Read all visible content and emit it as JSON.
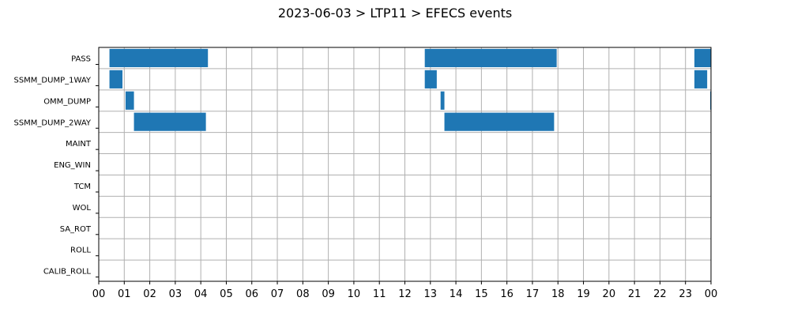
{
  "chart_data": {
    "type": "timeline",
    "title": "2023-06-03 > LTP11 > EFECS events",
    "xlabel": "",
    "ylabel": "",
    "x_unit": "hour",
    "xlim": [
      0,
      24
    ],
    "grid": true,
    "colors": {
      "bar": "#1f77b4",
      "grid": "#b0b0b0",
      "axis": "#000000"
    },
    "x_ticks": [
      "00",
      "01",
      "02",
      "03",
      "04",
      "05",
      "06",
      "07",
      "08",
      "09",
      "10",
      "11",
      "12",
      "13",
      "14",
      "15",
      "16",
      "17",
      "18",
      "19",
      "20",
      "21",
      "22",
      "23",
      "00"
    ],
    "categories": [
      "PASS",
      "SSMM_DUMP_1WAY",
      "OMM_DUMP",
      "SSMM_DUMP_2WAY",
      "MAINT",
      "ENG_WIN",
      "TCM",
      "WOL",
      "SA_ROT",
      "ROLL",
      "CALIB_ROLL"
    ],
    "events": [
      {
        "category": "PASS",
        "start": 0.42,
        "end": 4.28
      },
      {
        "category": "PASS",
        "start": 12.78,
        "end": 17.95
      },
      {
        "category": "PASS",
        "start": 23.35,
        "end": 24.0
      },
      {
        "category": "SSMM_DUMP_1WAY",
        "start": 0.42,
        "end": 0.93
      },
      {
        "category": "SSMM_DUMP_1WAY",
        "start": 12.78,
        "end": 13.25
      },
      {
        "category": "SSMM_DUMP_1WAY",
        "start": 23.35,
        "end": 23.85
      },
      {
        "category": "OMM_DUMP",
        "start": 1.05,
        "end": 1.38
      },
      {
        "category": "OMM_DUMP",
        "start": 13.4,
        "end": 13.55
      },
      {
        "category": "OMM_DUMP",
        "start": 23.97,
        "end": 24.0
      },
      {
        "category": "SSMM_DUMP_2WAY",
        "start": 1.38,
        "end": 4.2
      },
      {
        "category": "SSMM_DUMP_2WAY",
        "start": 13.55,
        "end": 17.85
      }
    ]
  }
}
